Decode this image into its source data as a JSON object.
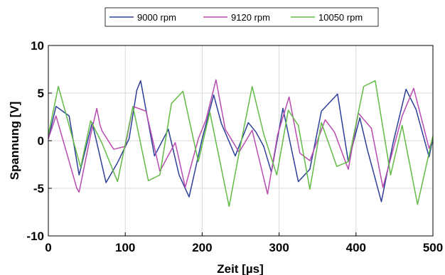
{
  "chart_data": {
    "type": "line",
    "xlabel": "Zeit [µs]",
    "ylabel": "Spannung [V]",
    "xlim": [
      0,
      500
    ],
    "ylim": [
      -10,
      10
    ],
    "xticks": [
      "0",
      "100",
      "200",
      "300",
      "400",
      "500"
    ],
    "yticks": [
      "10",
      "5",
      "0",
      "-5",
      "-10"
    ],
    "grid": true,
    "legend_position": "top",
    "series": [
      {
        "name": "9000 rpm",
        "color": "#2b3f99",
        "x": [
          0,
          10,
          27,
          40,
          57,
          75,
          90,
          105,
          115,
          120,
          138,
          156,
          170,
          183,
          200,
          215,
          225,
          243,
          260,
          270,
          280,
          290,
          305,
          325,
          340,
          355,
          376,
          390,
          405,
          415,
          433,
          448,
          465,
          478,
          495,
          500
        ],
        "y": [
          0.2,
          3.6,
          2.6,
          -3.6,
          1.9,
          -4.4,
          -2.3,
          0.2,
          5.3,
          6.3,
          -1.6,
          1.2,
          -3.6,
          -5.9,
          0.2,
          4.8,
          1.8,
          -1.6,
          1.9,
          0.9,
          -0.6,
          -3.3,
          3.4,
          -4.3,
          -3.0,
          3.1,
          4.9,
          -2.2,
          2.4,
          -1.0,
          -6.4,
          -0.3,
          5.4,
          3.3,
          -1.7,
          0.2
        ]
      },
      {
        "name": "9120 rpm",
        "color": "#b94bb0",
        "x": [
          0,
          10,
          25,
          37,
          40,
          55,
          63,
          67,
          70,
          85,
          100,
          110,
          127,
          145,
          165,
          178,
          195,
          205,
          218,
          230,
          248,
          265,
          285,
          298,
          313,
          327,
          340,
          360,
          372,
          390,
          403,
          420,
          435,
          460,
          475,
          495,
          500
        ],
        "y": [
          0.2,
          2.6,
          -1.6,
          -5.0,
          -5.4,
          0.6,
          3.4,
          1.7,
          1.0,
          -0.9,
          -0.6,
          3.6,
          3.1,
          -3.2,
          -0.2,
          -4.9,
          0.2,
          2.2,
          6.4,
          1.2,
          -1.2,
          1.1,
          -5.6,
          0.6,
          4.6,
          -1.3,
          -2.1,
          2.2,
          0.9,
          -3.0,
          2.9,
          1.3,
          -4.9,
          2.6,
          5.5,
          -0.8,
          0.2
        ]
      },
      {
        "name": "10050 rpm",
        "color": "#62bb46",
        "x": [
          0,
          13,
          28,
          42,
          55,
          70,
          90,
          110,
          130,
          145,
          160,
          175,
          195,
          210,
          235,
          250,
          265,
          280,
          297,
          312,
          325,
          340,
          355,
          375,
          390,
          410,
          425,
          445,
          460,
          480,
          500
        ],
        "y": [
          0.6,
          5.7,
          1.3,
          -2.8,
          2.1,
          -0.3,
          -4.3,
          3.6,
          -4.2,
          -3.6,
          3.9,
          5.2,
          -2.2,
          3.0,
          -6.9,
          -0.4,
          5.7,
          0.7,
          -3.6,
          3.2,
          1.6,
          -5.1,
          1.9,
          -2.7,
          -2.2,
          5.7,
          6.3,
          -3.6,
          1.6,
          -6.7,
          0.5
        ]
      }
    ]
  }
}
